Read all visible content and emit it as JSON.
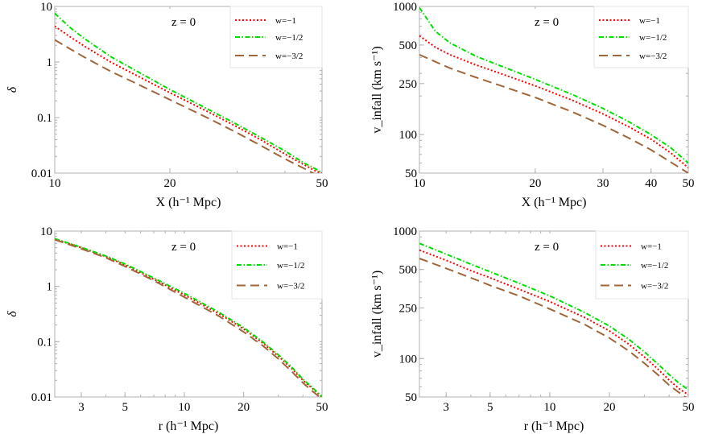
{
  "colors": {
    "w_minus_1": "#ff0000",
    "w_minus_1_2": "#00e000",
    "w_minus_3_2": "#a0663a",
    "frame": "#b0b0b0"
  },
  "chart_data": [
    {
      "type": "line",
      "panel": "top-left",
      "xscale": "log",
      "yscale": "log",
      "xlabel": "X (h⁻¹ Mpc)",
      "ylabel": "δ",
      "xlim": [
        10,
        50
      ],
      "ylim": [
        0.01,
        10
      ],
      "xticks": [
        {
          "v": 10,
          "label": "10"
        },
        {
          "v": 20,
          "label": "20"
        },
        {
          "v": 50,
          "label": "50"
        }
      ],
      "yticks": [
        {
          "v": 0.01,
          "label": "0.01"
        },
        {
          "v": 0.1,
          "label": "0.1"
        },
        {
          "v": 1,
          "label": "1"
        },
        {
          "v": 10,
          "label": "10"
        }
      ],
      "annotation": "z = 0",
      "legend_position": "top-right",
      "series": [
        {
          "name": "w=−1",
          "style": "dotted",
          "color": "#ff0000",
          "x": [
            10,
            11,
            12,
            14,
            16,
            20,
            25,
            30,
            35,
            40,
            45,
            48,
            50
          ],
          "y": [
            4.4,
            2.8,
            1.9,
            1.0,
            0.62,
            0.28,
            0.13,
            0.068,
            0.038,
            0.022,
            0.014,
            0.011,
            0.0098
          ]
        },
        {
          "name": "w=−1/2",
          "style": "dash-dot",
          "color": "#00e000",
          "x": [
            10,
            11,
            12,
            14,
            16,
            20,
            25,
            30,
            35,
            40,
            45,
            48,
            50
          ],
          "y": [
            7.5,
            4.1,
            2.6,
            1.25,
            0.75,
            0.32,
            0.145,
            0.075,
            0.042,
            0.025,
            0.015,
            0.012,
            0.0102
          ]
        },
        {
          "name": "w=−3/2",
          "style": "dashed",
          "color": "#a0663a",
          "x": [
            10,
            11,
            12,
            14,
            16,
            20,
            25,
            30,
            35,
            40,
            45,
            48,
            50
          ],
          "y": [
            2.5,
            1.7,
            1.2,
            0.68,
            0.44,
            0.21,
            0.1,
            0.053,
            0.03,
            0.018,
            0.012,
            0.0095,
            0.0085
          ]
        }
      ]
    },
    {
      "type": "line",
      "panel": "top-right",
      "xscale": "log",
      "yscale": "log",
      "xlabel": "X (h⁻¹ Mpc)",
      "ylabel": "v_infall (km s⁻¹)",
      "xlim": [
        10,
        50
      ],
      "ylim": [
        50,
        1000
      ],
      "xticks": [
        {
          "v": 10,
          "label": "10"
        },
        {
          "v": 20,
          "label": "20"
        },
        {
          "v": 30,
          "label": "30"
        },
        {
          "v": 40,
          "label": "40"
        },
        {
          "v": 50,
          "label": "50"
        }
      ],
      "yticks": [
        {
          "v": 50,
          "label": "50"
        },
        {
          "v": 100,
          "label": "100"
        },
        {
          "v": 250,
          "label": "250"
        },
        {
          "v": 500,
          "label": "500"
        },
        {
          "v": 1000,
          "label": "1000"
        }
      ],
      "annotation": "z = 0",
      "legend_position": "top-right",
      "series": [
        {
          "name": "w=−1",
          "style": "dotted",
          "color": "#ff0000",
          "x": [
            10,
            11,
            12,
            14,
            16,
            20,
            25,
            30,
            35,
            40,
            45,
            50
          ],
          "y": [
            590,
            480,
            420,
            350,
            305,
            240,
            185,
            145,
            115,
            92,
            72,
            55
          ]
        },
        {
          "name": "w=−1/2",
          "style": "dash-dot",
          "color": "#00e000",
          "x": [
            10,
            11,
            12,
            14,
            16,
            20,
            25,
            30,
            35,
            40,
            45,
            50
          ],
          "y": [
            980,
            640,
            520,
            410,
            350,
            270,
            205,
            160,
            126,
            100,
            79,
            60
          ]
        },
        {
          "name": "w=−3/2",
          "style": "dashed",
          "color": "#a0663a",
          "x": [
            10,
            11,
            12,
            14,
            16,
            20,
            25,
            30,
            35,
            40,
            45,
            50
          ],
          "y": [
            420,
            370,
            330,
            280,
            245,
            195,
            150,
            118,
            94,
            76,
            61,
            50
          ]
        }
      ]
    },
    {
      "type": "line",
      "panel": "bottom-left",
      "xscale": "log",
      "yscale": "log",
      "xlabel": "r (h⁻¹ Mpc)",
      "ylabel": "δ",
      "xlim": [
        2.2,
        50
      ],
      "ylim": [
        0.01,
        10
      ],
      "xticks": [
        {
          "v": 3,
          "label": "3"
        },
        {
          "v": 5,
          "label": "5"
        },
        {
          "v": 10,
          "label": "10"
        },
        {
          "v": 20,
          "label": "20"
        },
        {
          "v": 50,
          "label": "50"
        }
      ],
      "yticks": [
        {
          "v": 0.01,
          "label": "0.01"
        },
        {
          "v": 0.1,
          "label": "0.1"
        },
        {
          "v": 1,
          "label": "1"
        },
        {
          "v": 10,
          "label": "10"
        }
      ],
      "annotation": "z = 0",
      "legend_position": "top-right",
      "series": [
        {
          "name": "w=−1",
          "style": "dotted",
          "color": "#ff0000",
          "x": [
            2.2,
            3,
            4,
            5,
            7,
            10,
            15,
            20,
            25,
            30,
            35,
            40,
            45,
            50
          ],
          "y": [
            7.2,
            5.0,
            3.45,
            2.45,
            1.35,
            0.7,
            0.32,
            0.17,
            0.095,
            0.055,
            0.033,
            0.02,
            0.014,
            0.01
          ]
        },
        {
          "name": "w=−1/2",
          "style": "dash-dot",
          "color": "#00e000",
          "x": [
            2.2,
            3,
            4,
            5,
            7,
            10,
            15,
            20,
            25,
            30,
            35,
            40,
            45,
            50
          ],
          "y": [
            7.3,
            5.1,
            3.55,
            2.55,
            1.42,
            0.75,
            0.34,
            0.18,
            0.1,
            0.058,
            0.035,
            0.021,
            0.0145,
            0.0102
          ]
        },
        {
          "name": "w=−3/2",
          "style": "dashed",
          "color": "#a0663a",
          "x": [
            2.2,
            3,
            4,
            5,
            7,
            10,
            15,
            20,
            25,
            30,
            35,
            40,
            45,
            50
          ],
          "y": [
            7.0,
            4.8,
            3.3,
            2.3,
            1.27,
            0.64,
            0.29,
            0.15,
            0.085,
            0.049,
            0.029,
            0.018,
            0.0125,
            0.0092
          ]
        }
      ]
    },
    {
      "type": "line",
      "panel": "bottom-right",
      "xscale": "log",
      "yscale": "log",
      "xlabel": "r (h⁻¹ Mpc)",
      "ylabel": "v_infall (km s⁻¹)",
      "xlim": [
        2.2,
        50
      ],
      "ylim": [
        50,
        1000
      ],
      "xticks": [
        {
          "v": 3,
          "label": "3"
        },
        {
          "v": 5,
          "label": "5"
        },
        {
          "v": 10,
          "label": "10"
        },
        {
          "v": 20,
          "label": "20"
        },
        {
          "v": 50,
          "label": "50"
        }
      ],
      "yticks": [
        {
          "v": 50,
          "label": "50"
        },
        {
          "v": 100,
          "label": "100"
        },
        {
          "v": 250,
          "label": "250"
        },
        {
          "v": 500,
          "label": "500"
        },
        {
          "v": 1000,
          "label": "1000"
        }
      ],
      "annotation": "z = 0",
      "legend_position": "top-right",
      "series": [
        {
          "name": "w=−1",
          "style": "dotted",
          "color": "#ff0000",
          "x": [
            2.2,
            3,
            4,
            5,
            7,
            10,
            15,
            20,
            25,
            30,
            35,
            40,
            45,
            50
          ],
          "y": [
            710,
            590,
            490,
            430,
            350,
            280,
            210,
            165,
            130,
            103,
            83,
            68,
            58,
            52
          ]
        },
        {
          "name": "w=−1/2",
          "style": "dash-dot",
          "color": "#00e000",
          "x": [
            2.2,
            3,
            4,
            5,
            7,
            10,
            15,
            20,
            25,
            30,
            35,
            40,
            45,
            50
          ],
          "y": [
            800,
            660,
            550,
            480,
            390,
            310,
            230,
            180,
            142,
            113,
            91,
            75,
            64,
            57
          ]
        },
        {
          "name": "w=−3/2",
          "style": "dashed",
          "color": "#a0663a",
          "x": [
            2.2,
            3,
            4,
            5,
            7,
            10,
            15,
            20,
            25,
            30,
            35,
            40,
            45,
            50
          ],
          "y": [
            610,
            510,
            430,
            375,
            310,
            245,
            185,
            145,
            115,
            92,
            75,
            62,
            54,
            48
          ]
        }
      ]
    }
  ]
}
